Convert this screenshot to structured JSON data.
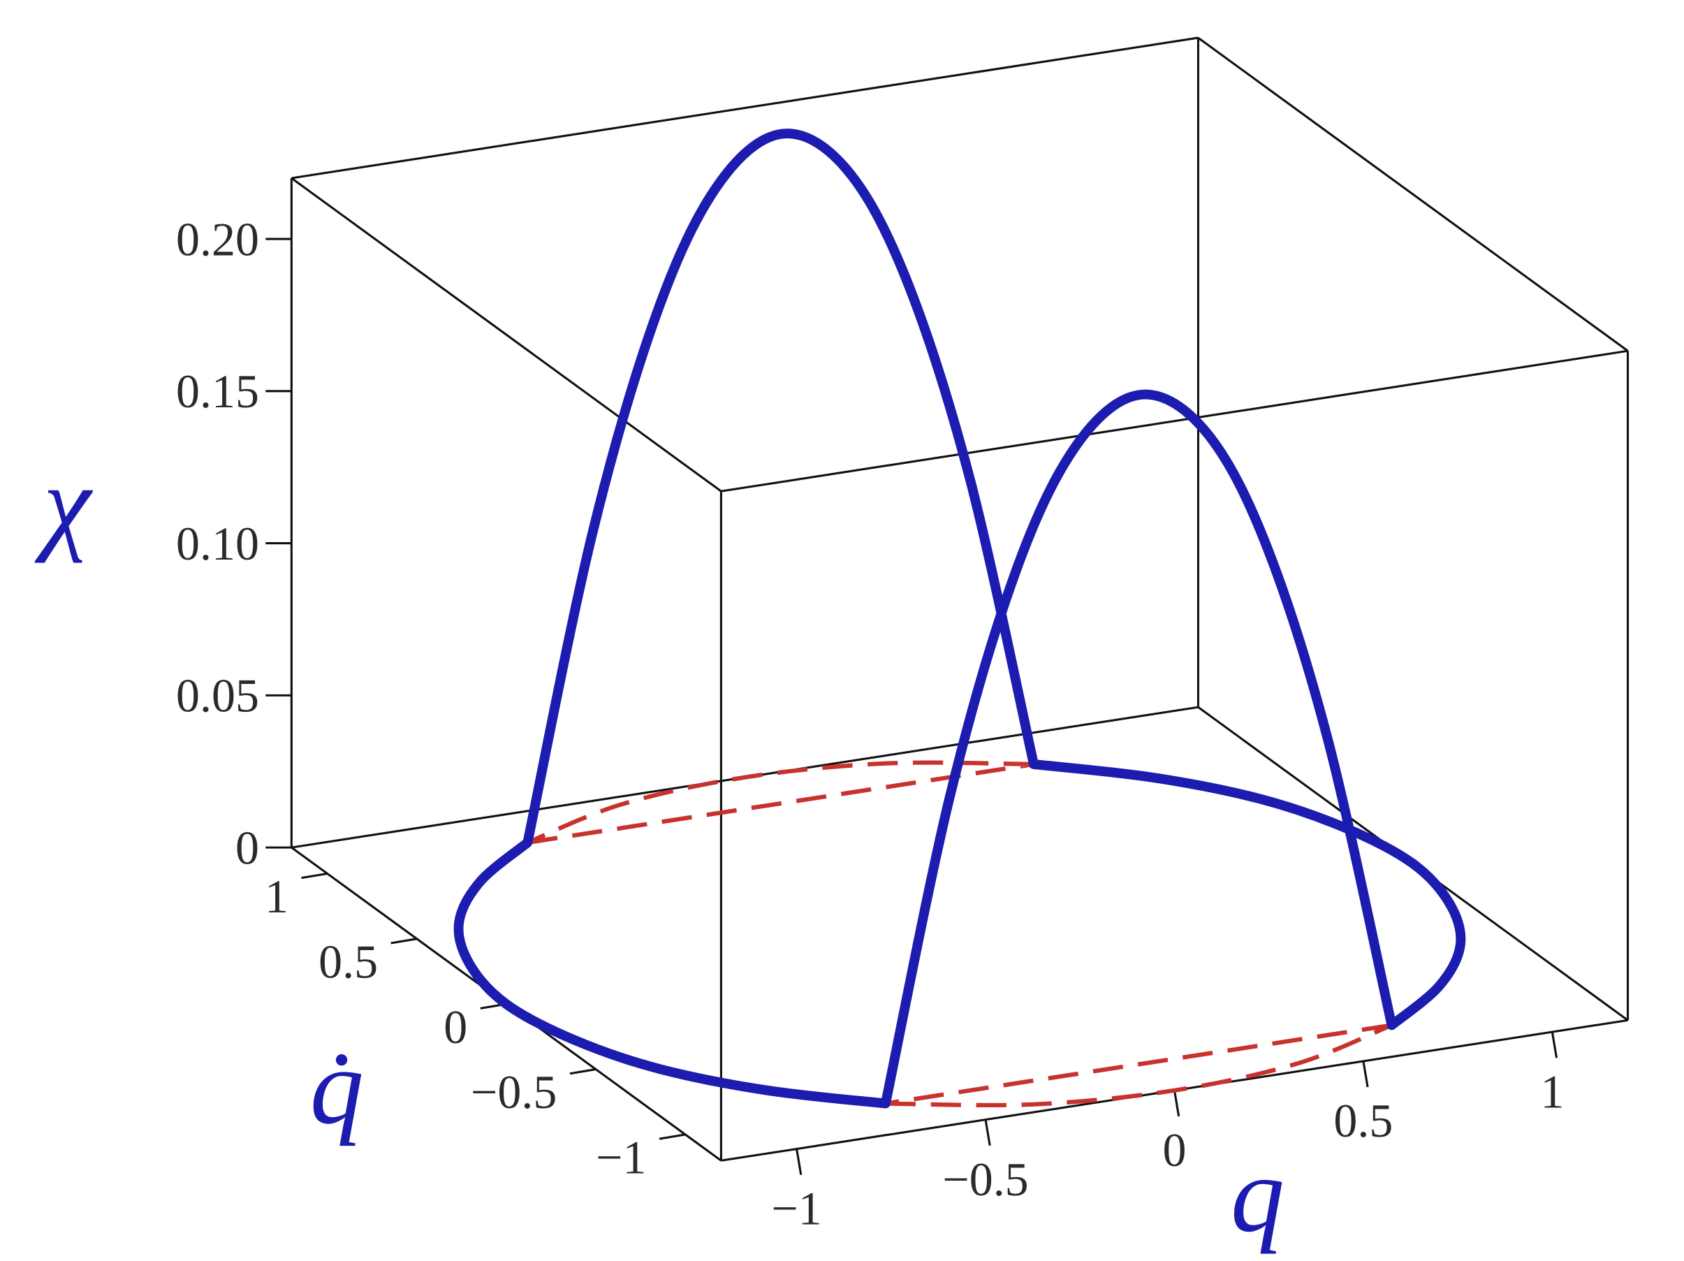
{
  "chart_data": {
    "type": "line3d",
    "xlabel": "q",
    "ylabel": "q̇",
    "zlabel": "χ",
    "xlim": [
      -1.2,
      1.2
    ],
    "ylim": [
      -1.2,
      1.2
    ],
    "zlim": [
      0,
      0.22
    ],
    "xticks": [
      {
        "value": -1,
        "label": "−1"
      },
      {
        "value": -0.5,
        "label": "−0.5"
      },
      0,
      0.5,
      1
    ],
    "yticks": [
      {
        "value": -1,
        "label": "−1"
      },
      {
        "value": -0.5,
        "label": "−0.5"
      },
      0,
      0.5,
      1
    ],
    "zticks": [
      0,
      0.05,
      {
        "value": 0.1,
        "label": "0.10"
      },
      0.15,
      {
        "value": 0.2,
        "label": "0.20"
      }
    ],
    "box": true,
    "series": [
      {
        "color": "#c8322d",
        "style": "dashed",
        "x": [
          0.67,
          0.35,
          0,
          -0.35,
          -0.67,
          null,
          -0.67,
          0.67,
          null,
          -0.67,
          -0.35,
          0,
          0.35,
          0.67,
          null,
          0.67,
          -0.67
        ],
        "y": [
          1.0,
          1.15,
          1.2,
          1.15,
          1.0,
          null,
          1.0,
          1.0,
          null,
          -1.0,
          -1.15,
          -1.2,
          -1.15,
          -1.0,
          null,
          -1.0,
          -1.0
        ],
        "z": [
          0,
          0,
          0,
          0,
          0,
          null,
          0,
          0,
          null,
          0,
          0,
          0,
          0,
          0,
          null,
          0,
          0
        ]
      },
      {
        "color": "#1c1cb0",
        "style": "solid",
        "x": [
          0.67,
          0.5,
          0.33,
          0.17,
          0,
          -0.17,
          -0.33,
          -0.5,
          -0.67,
          null,
          -0.67,
          -0.89,
          -1.06,
          -1.16,
          -1.2,
          -1.16,
          -1.06,
          -0.89,
          -0.67,
          null,
          -0.67,
          -0.5,
          -0.33,
          -0.17,
          0,
          0.17,
          0.33,
          0.5,
          0.67,
          null,
          0.67,
          0.89,
          1.06,
          1.16,
          1.2,
          1.16,
          1.06,
          0.89,
          0.67
        ],
        "y": [
          1.0,
          1.0,
          1.0,
          1.0,
          1.0,
          1.0,
          1.0,
          1.0,
          1.0,
          null,
          1.0,
          0.8,
          0.56,
          0.29,
          0,
          -0.29,
          -0.56,
          -0.8,
          -1.0,
          null,
          -1.0,
          -1.0,
          -1.0,
          -1.0,
          -1.0,
          -1.0,
          -1.0,
          -1.0,
          -1.0,
          null,
          -1.0,
          -0.8,
          -0.56,
          -0.29,
          0,
          0.29,
          0.56,
          0.8,
          1.0
        ],
        "z": [
          0,
          0.0975,
          0.1667,
          0.2058,
          0.22,
          0.2058,
          0.1667,
          0.0975,
          0,
          null,
          0,
          0,
          0,
          0,
          0,
          0,
          0,
          0,
          0,
          null,
          0,
          0.0975,
          0.1667,
          0.2058,
          0.22,
          0.2058,
          0.1667,
          0.0975,
          0,
          null,
          0,
          0,
          0,
          0,
          0,
          0,
          0,
          0,
          0
        ]
      }
    ]
  }
}
